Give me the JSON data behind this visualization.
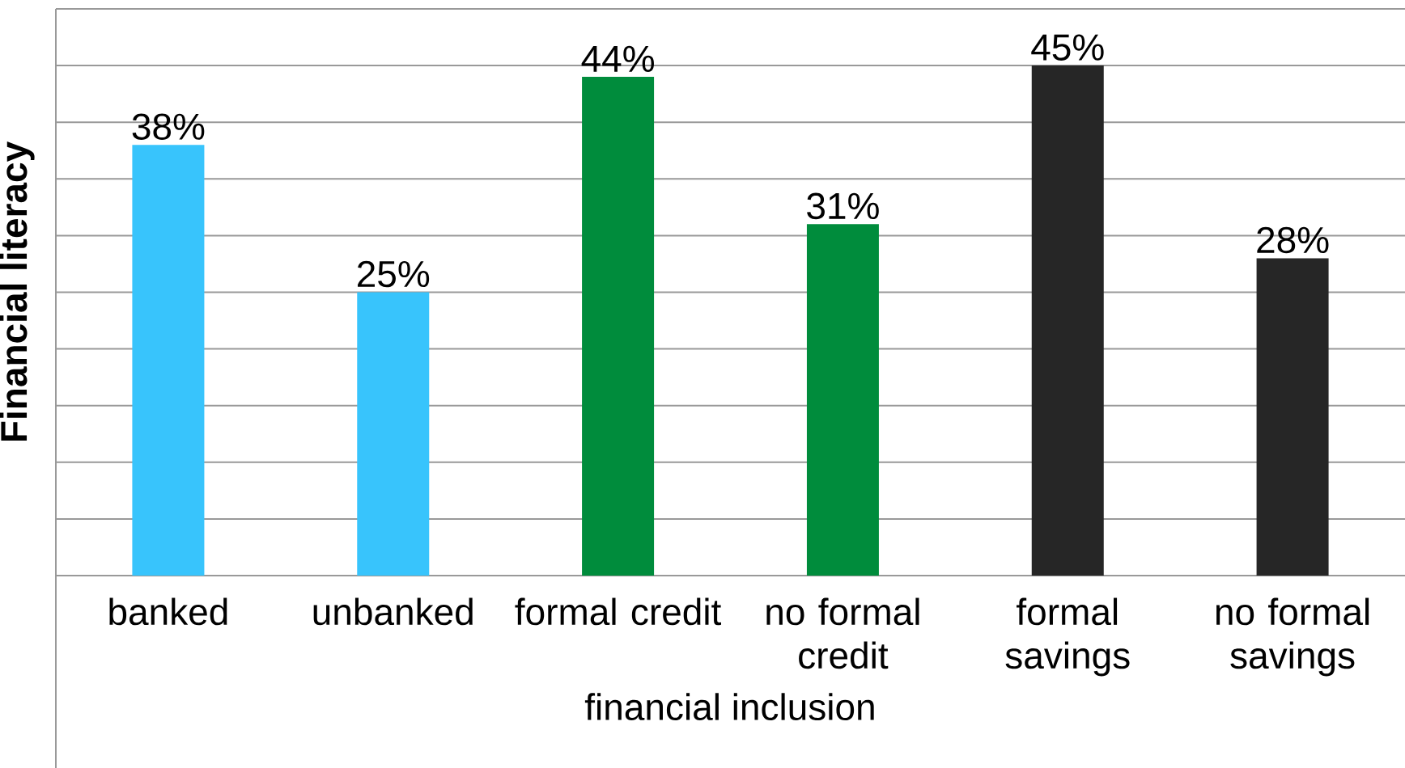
{
  "chart_data": {
    "type": "bar",
    "xlabel": "financial inclusion",
    "ylabel": "Financial literacy",
    "categories": [
      "banked",
      "unbanked",
      "formal credit",
      "no formal credit",
      "formal savings",
      "no formal savings"
    ],
    "values": [
      38,
      25,
      44,
      31,
      45,
      28
    ],
    "colors": [
      "#38c4fc",
      "#38c4fc",
      "#008c3c",
      "#008c3c",
      "#262626",
      "#262626"
    ],
    "value_labels": [
      "38%",
      "25%",
      "44%",
      "31%",
      "45%",
      "28%"
    ],
    "ylim": [
      0,
      50
    ],
    "yticks": [
      {
        "value": 0,
        "label": null
      },
      {
        "value": 5,
        "label": null
      },
      {
        "value": 10,
        "label": null
      },
      {
        "value": 15,
        "label": null
      },
      {
        "value": 20,
        "label": null
      },
      {
        "value": 25,
        "label": null
      },
      {
        "value": 30,
        "label": null
      },
      {
        "value": 35,
        "label": null
      },
      {
        "value": 40,
        "label": null
      },
      {
        "value": 45,
        "label": null
      },
      {
        "value": 50,
        "label": null
      }
    ],
    "grid": "y",
    "tick_labels": "x"
  }
}
